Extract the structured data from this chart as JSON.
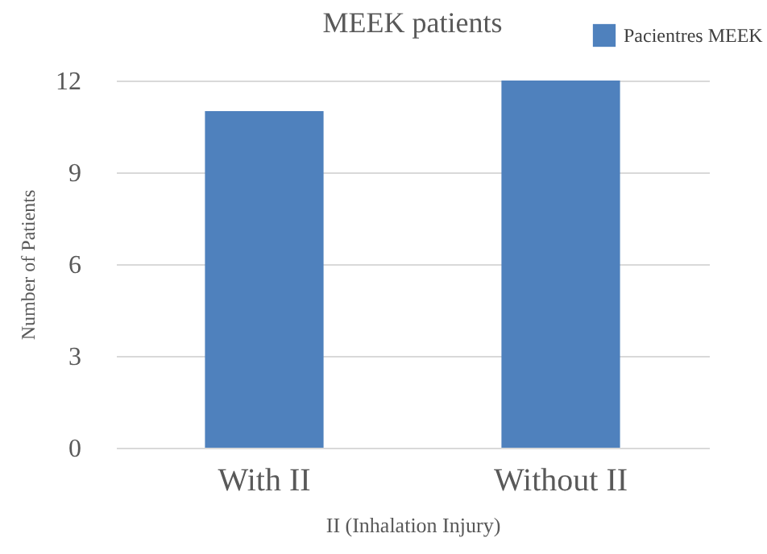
{
  "chart_data": {
    "type": "bar",
    "title": "MEEK patients",
    "xlabel": "II (Inhalation Injury)",
    "ylabel": "Number of Patients",
    "categories": [
      "With II",
      "Without II"
    ],
    "series": [
      {
        "name": "Pacientres MEEK",
        "color": "#4f81bd",
        "values": [
          11,
          12
        ]
      }
    ],
    "ylim": [
      0,
      12
    ],
    "yticks": [
      0,
      3,
      6,
      9,
      12
    ],
    "grid": "y",
    "legend": "top right"
  }
}
